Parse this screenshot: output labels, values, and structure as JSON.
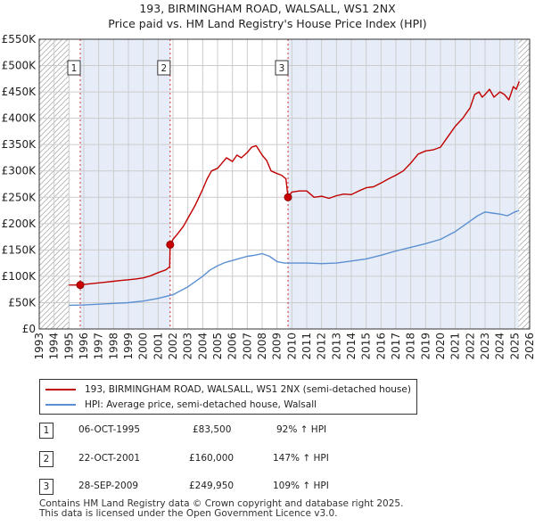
{
  "title": "193, BIRMINGHAM ROAD, WALSALL, WS1 2NX",
  "subtitle": "Price paid vs. HM Land Registry's House Price Index (HPI)",
  "colors": {
    "price": "#c00000",
    "hpi": "#5b8fd1",
    "shade": "#e6edf8",
    "grid": "#cccccc",
    "marker": "#cc0000"
  },
  "chart_data": {
    "type": "line",
    "xlim": [
      1993,
      2026
    ],
    "ylim": [
      0,
      550000
    ],
    "y_ticks": [
      0,
      50000,
      100000,
      150000,
      200000,
      250000,
      300000,
      350000,
      400000,
      450000,
      500000,
      550000
    ],
    "y_tick_labels": [
      "£0",
      "£50K",
      "£100K",
      "£150K",
      "£200K",
      "£250K",
      "£300K",
      "£350K",
      "£400K",
      "£450K",
      "£500K",
      "£550K"
    ],
    "x_ticks": [
      1993,
      1994,
      1995,
      1996,
      1997,
      1998,
      1999,
      2000,
      2001,
      2002,
      2003,
      2004,
      2005,
      2006,
      2007,
      2008,
      2009,
      2010,
      2011,
      2012,
      2013,
      2014,
      2015,
      2016,
      2017,
      2018,
      2019,
      2020,
      2021,
      2022,
      2023,
      2024,
      2025,
      2026
    ],
    "x_tick_labels": [
      "1993",
      "1994",
      "1995",
      "1996",
      "1997",
      "1998",
      "1999",
      "2000",
      "2001",
      "2002",
      "2003",
      "2004",
      "2005",
      "2006",
      "2007",
      "2008",
      "2009",
      "2010",
      "2011",
      "2012",
      "2013",
      "2014",
      "2015",
      "2016",
      "2017",
      "2018",
      "2019",
      "2020",
      "2021",
      "2022",
      "2023",
      "2024",
      "2025",
      "2026"
    ],
    "hatch_before": 1995.0,
    "hatch_after": 2025.25,
    "shaded_bands": [
      [
        1995.76,
        2001.81
      ],
      [
        2009.74,
        2025.25
      ]
    ],
    "series": [
      {
        "name": "193, BIRMINGHAM ROAD, WALSALL, WS1 2NX (semi-detached house)",
        "color": "#c00000",
        "x": [
          1995.0,
          1995.76,
          1996.0,
          1996.5,
          1997.0,
          1997.5,
          1998.0,
          1998.5,
          1999.0,
          1999.5,
          2000.0,
          2000.5,
          2001.0,
          2001.5,
          2001.78,
          2001.81,
          2002.0,
          2002.3,
          2002.7,
          2003.0,
          2003.5,
          2004.0,
          2004.3,
          2004.6,
          2005.0,
          2005.3,
          2005.6,
          2006.0,
          2006.3,
          2006.6,
          2007.0,
          2007.3,
          2007.6,
          2008.0,
          2008.3,
          2008.6,
          2009.0,
          2009.3,
          2009.6,
          2009.74,
          2010.0,
          2010.5,
          2011.0,
          2011.5,
          2012.0,
          2012.5,
          2013.0,
          2013.5,
          2014.0,
          2014.5,
          2015.0,
          2015.5,
          2016.0,
          2016.5,
          2017.0,
          2017.5,
          2018.0,
          2018.5,
          2019.0,
          2019.5,
          2020.0,
          2020.5,
          2021.0,
          2021.5,
          2022.0,
          2022.3,
          2022.6,
          2022.8,
          2023.0,
          2023.3,
          2023.6,
          2024.0,
          2024.3,
          2024.6,
          2024.9,
          2025.1,
          2025.3
        ],
        "values": [
          83500,
          83500,
          84500,
          86000,
          87500,
          89000,
          90500,
          92000,
          93500,
          95000,
          97000,
          101000,
          107000,
          112000,
          118000,
          160000,
          170000,
          180000,
          195000,
          210000,
          235000,
          265000,
          285000,
          300000,
          305000,
          315000,
          325000,
          318000,
          330000,
          325000,
          335000,
          345000,
          348000,
          330000,
          320000,
          300000,
          295000,
          292000,
          285000,
          249950,
          260000,
          262000,
          262000,
          250000,
          252000,
          248000,
          253000,
          256000,
          255000,
          262000,
          268000,
          270000,
          277000,
          285000,
          292000,
          300000,
          315000,
          332000,
          338000,
          340000,
          345000,
          365000,
          385000,
          400000,
          420000,
          445000,
          450000,
          440000,
          445000,
          455000,
          440000,
          450000,
          445000,
          435000,
          460000,
          455000,
          470000
        ]
      },
      {
        "name": "HPI: Average price, semi-detached house, Walsall",
        "color": "#5b8fd1",
        "x": [
          1995.0,
          1996.0,
          1997.0,
          1998.0,
          1999.0,
          2000.0,
          2001.0,
          2002.0,
          2003.0,
          2004.0,
          2004.5,
          2005.0,
          2005.5,
          2006.0,
          2006.5,
          2007.0,
          2007.5,
          2008.0,
          2008.5,
          2009.0,
          2009.5,
          2010.0,
          2011.0,
          2012.0,
          2013.0,
          2014.0,
          2015.0,
          2016.0,
          2017.0,
          2018.0,
          2019.0,
          2020.0,
          2021.0,
          2022.0,
          2022.5,
          2023.0,
          2023.5,
          2024.0,
          2024.5,
          2025.0,
          2025.3
        ],
        "values": [
          45000,
          45500,
          47000,
          48500,
          50000,
          53000,
          58000,
          65000,
          80000,
          100000,
          112000,
          120000,
          126000,
          130000,
          134000,
          138000,
          140000,
          143000,
          138000,
          128000,
          125000,
          125000,
          125000,
          124000,
          125000,
          129000,
          133000,
          140000,
          148000,
          155000,
          162000,
          170000,
          185000,
          205000,
          215000,
          222000,
          220000,
          218000,
          215000,
          222000,
          225000
        ]
      }
    ],
    "sales": [
      {
        "label": "1",
        "x": 1995.76,
        "value": 83500
      },
      {
        "label": "2",
        "x": 2001.81,
        "value": 160000
      },
      {
        "label": "3",
        "x": 2009.74,
        "value": 249950
      }
    ]
  },
  "legend": {
    "price_label": "193, BIRMINGHAM ROAD, WALSALL, WS1 2NX (semi-detached house)",
    "hpi_label": "HPI: Average price, semi-detached house, Walsall"
  },
  "transactions": [
    {
      "num": "1",
      "date": "06-OCT-1995",
      "price": "£83,500",
      "hpi": "92% ↑ HPI"
    },
    {
      "num": "2",
      "date": "22-OCT-2001",
      "price": "£160,000",
      "hpi": "147% ↑ HPI"
    },
    {
      "num": "3",
      "date": "28-SEP-2009",
      "price": "£249,950",
      "hpi": "109% ↑ HPI"
    }
  ],
  "footer": {
    "line1": "Contains HM Land Registry data © Crown copyright and database right 2025.",
    "line2": "This data is licensed under the Open Government Licence v3.0."
  }
}
